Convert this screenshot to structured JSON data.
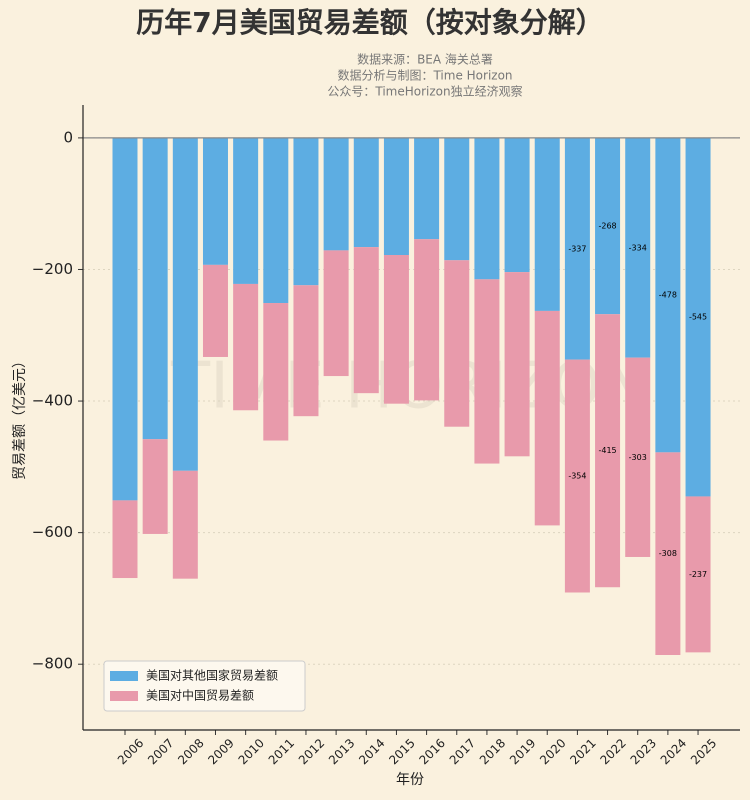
{
  "chart_data": {
    "type": "bar",
    "stacked": true,
    "title": "历年7月美国贸易差额（按对象分解）",
    "subtitle": [
      "数据来源：BEA 海关总署",
      "数据分析与制图：Time Horizon",
      "公众号：TimeHorizon独立经济观察"
    ],
    "watermark": "TIME HORIZON",
    "x_label": "年份",
    "y_label": "贸易差额（亿美元）",
    "categories": [
      "2006",
      "2007",
      "2008",
      "2009",
      "2010",
      "2011",
      "2012",
      "2013",
      "2014",
      "2015",
      "2016",
      "2017",
      "2018",
      "2019",
      "2020",
      "2021",
      "2022",
      "2023",
      "2024",
      "2025"
    ],
    "series": [
      {
        "name": "美国对其他国家贸易差额",
        "color": "#5dade2",
        "values": [
          -551,
          -458,
          -506,
          -193,
          -222,
          -251,
          -224,
          -171,
          -166,
          -178,
          -154,
          -186,
          -215,
          -204,
          -263,
          -337,
          -268,
          -334,
          -478,
          -545
        ],
        "value_labels": [
          null,
          null,
          null,
          null,
          null,
          null,
          null,
          null,
          null,
          null,
          null,
          null,
          null,
          null,
          null,
          "-337",
          "-268",
          "-334",
          "-478",
          "-545"
        ]
      },
      {
        "name": "美国对中国贸易差额",
        "color": "#e89aab",
        "values": [
          -118,
          -144,
          -164,
          -140,
          -192,
          -209,
          -199,
          -191,
          -222,
          -226,
          -245,
          -253,
          -280,
          -280,
          -326,
          -354,
          -415,
          -303,
          -308,
          -237
        ],
        "value_labels": [
          null,
          null,
          null,
          null,
          null,
          null,
          null,
          null,
          null,
          null,
          null,
          null,
          null,
          null,
          null,
          "-354",
          "-415",
          "-303",
          "-308",
          "-237"
        ]
      }
    ],
    "ylim": [
      -900,
      50
    ],
    "yticks": [
      {
        "value": -800,
        "label": "−800"
      },
      {
        "value": -600,
        "label": "−600"
      },
      {
        "value": -400,
        "label": "−400"
      },
      {
        "value": -200,
        "label": "−200"
      },
      0
    ],
    "grid": true,
    "legend": "lower left"
  }
}
